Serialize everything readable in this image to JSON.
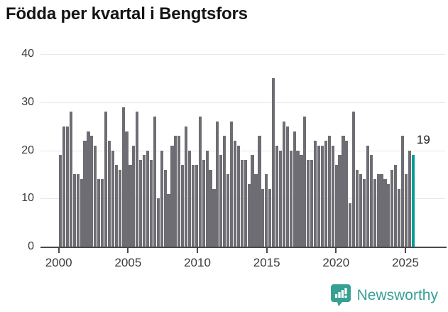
{
  "title": "Födda per kvartal i Bengtsfors",
  "chart_data": {
    "type": "bar",
    "title": "Födda per kvartal i Bengtsfors",
    "x_unit": "quarter",
    "first_period": "2000 Q1",
    "last_period": "2025 Q2",
    "values_by_year": {
      "2000": [
        19,
        25,
        25,
        28
      ],
      "2001": [
        15,
        15,
        14,
        22
      ],
      "2002": [
        24,
        23,
        21,
        14
      ],
      "2003": [
        14,
        28,
        22,
        20
      ],
      "2004": [
        17,
        16,
        29,
        24
      ],
      "2005": [
        17,
        21,
        28,
        18
      ],
      "2006": [
        19,
        20,
        18,
        27
      ],
      "2007": [
        10,
        20,
        16,
        11
      ],
      "2008": [
        21,
        23,
        23,
        17
      ],
      "2009": [
        25,
        20,
        17,
        17
      ],
      "2010": [
        27,
        18,
        20,
        16
      ],
      "2011": [
        12,
        26,
        19,
        23
      ],
      "2012": [
        15,
        26,
        22,
        21
      ],
      "2013": [
        18,
        18,
        13,
        19
      ],
      "2014": [
        15,
        23,
        12,
        15
      ],
      "2015": [
        12,
        35,
        21,
        20
      ],
      "2016": [
        26,
        25,
        20,
        24
      ],
      "2017": [
        20,
        19,
        27,
        18
      ],
      "2018": [
        18,
        22,
        21,
        21
      ],
      "2019": [
        22,
        23,
        21,
        17
      ],
      "2020": [
        19,
        23,
        22,
        9
      ],
      "2021": [
        28,
        16,
        15,
        14
      ],
      "2022": [
        21,
        19,
        14,
        15
      ],
      "2023": [
        15,
        14,
        13,
        16
      ],
      "2024": [
        17,
        12,
        23,
        15
      ],
      "2025": [
        20,
        19
      ]
    },
    "highlight_last_bar": true,
    "annotation": {
      "text": "19",
      "applies_to": "2025 Q2"
    },
    "ylim": [
      0,
      40
    ],
    "yticks": [
      0,
      10,
      20,
      30,
      40
    ],
    "xticks": [
      2000,
      2005,
      2010,
      2015,
      2020,
      2025
    ],
    "grid": "horizontal",
    "legend": "none",
    "colors": {
      "bar": "#6e6d73",
      "highlight": "#009d96",
      "grid": "#e8e8e8",
      "axis": "#4a4a4a",
      "tick_label": "#3a3a3a"
    }
  },
  "branding": {
    "logo_text": "Newsworthy",
    "logo_color": "#36a093"
  }
}
